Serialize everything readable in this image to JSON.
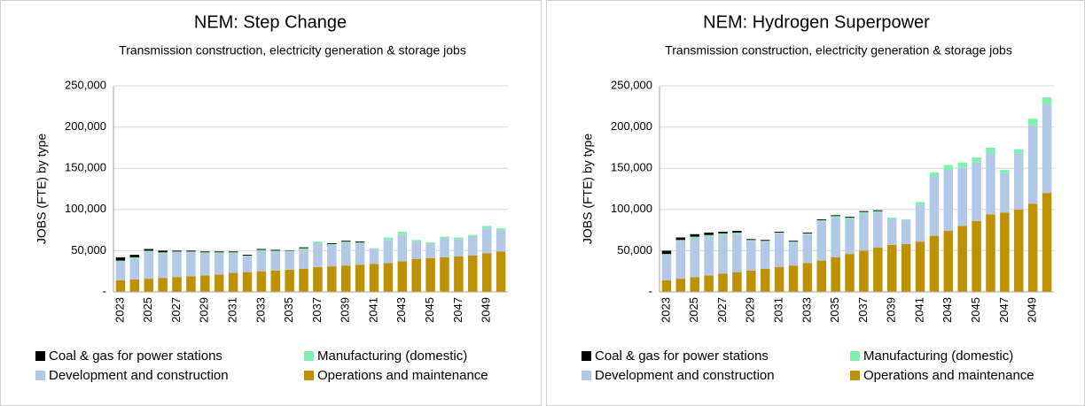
{
  "chart_data": [
    {
      "type": "stacked_bar",
      "title": "NEM: Step Change",
      "subtitle": "Transmission construction, electricity generation & storage jobs",
      "y_label": "JOBS (FTE) by type",
      "categories": [
        "2023",
        null,
        "2025",
        null,
        "2027",
        null,
        "2029",
        null,
        "2031",
        null,
        "2033",
        null,
        "2035",
        null,
        "2037",
        null,
        "2039",
        null,
        "2041",
        null,
        "2043",
        null,
        "2045",
        null,
        "2047",
        null,
        "2049",
        null
      ],
      "ylim": [
        0,
        250000
      ],
      "yticks": [
        {
          "value": 0,
          "label": "-"
        },
        {
          "value": 50000,
          "label": "50,000"
        },
        {
          "value": 100000,
          "label": "100,000"
        },
        {
          "value": 150000,
          "label": "150,000"
        },
        {
          "value": 200000,
          "label": "200,000"
        },
        {
          "value": 250000,
          "label": "250,000"
        }
      ],
      "grid": true,
      "series": [
        {
          "name": "Coal & gas for power stations",
          "color": "#000000",
          "values": [
            4000,
            3000,
            2000,
            2000,
            1000,
            1000,
            1000,
            1000,
            1000,
            1000,
            1000,
            1000,
            500,
            1000,
            0,
            1000,
            1000,
            1000,
            0,
            0,
            0,
            0,
            0,
            0,
            0,
            0,
            0,
            0
          ]
        },
        {
          "name": "Manufacturing (domestic)",
          "color": "#7ff0b0",
          "values": [
            2000,
            2000,
            1000,
            1000,
            1000,
            1000,
            1000,
            1000,
            1000,
            1000,
            1000,
            1000,
            1000,
            2000,
            2000,
            1000,
            1000,
            1000,
            1000,
            3000,
            4000,
            2000,
            2000,
            2000,
            2000,
            2000,
            3000,
            2000
          ]
        },
        {
          "name": "Development and construction",
          "color": "#b4c7e7",
          "values": [
            22000,
            25000,
            33000,
            30000,
            30000,
            29000,
            27000,
            26000,
            24000,
            19000,
            25000,
            23000,
            22000,
            23000,
            29000,
            26000,
            28000,
            26000,
            18000,
            28000,
            32000,
            21000,
            17000,
            23000,
            21000,
            23000,
            30000,
            26000
          ]
        },
        {
          "name": "Operations and maintenance",
          "color": "#bf9000",
          "values": [
            14000,
            15000,
            16000,
            17000,
            18000,
            19000,
            20000,
            21000,
            23000,
            24000,
            25000,
            26000,
            27000,
            28000,
            30000,
            31000,
            32000,
            33000,
            34000,
            35000,
            37000,
            40000,
            41000,
            42000,
            43000,
            44000,
            47000,
            49000
          ]
        }
      ]
    },
    {
      "type": "stacked_bar",
      "title": "NEM: Hydrogen Superpower",
      "subtitle": "Transmission construction, electricity generation & storage jobs",
      "y_label": "JOBS (FTE) by type",
      "categories": [
        "2023",
        null,
        "2025",
        null,
        "2027",
        null,
        "2029",
        null,
        "2031",
        null,
        "2033",
        null,
        "2035",
        null,
        "2037",
        null,
        "2039",
        null,
        "2041",
        null,
        "2043",
        null,
        "2045",
        null,
        "2047",
        null,
        "2049",
        null
      ],
      "ylim": [
        0,
        250000
      ],
      "yticks": [
        {
          "value": 0,
          "label": "-"
        },
        {
          "value": 50000,
          "label": "50,000"
        },
        {
          "value": 100000,
          "label": "100,000"
        },
        {
          "value": 150000,
          "label": "150,000"
        },
        {
          "value": 200000,
          "label": "200,000"
        },
        {
          "value": 250000,
          "label": "250,000"
        }
      ],
      "grid": true,
      "series": [
        {
          "name": "Coal & gas for power stations",
          "color": "#000000",
          "values": [
            4000,
            3000,
            3000,
            3000,
            2000,
            2000,
            1000,
            1000,
            1000,
            1000,
            1000,
            1000,
            1000,
            1000,
            1000,
            1000,
            0,
            0,
            0,
            0,
            0,
            0,
            0,
            0,
            0,
            0,
            0,
            0
          ]
        },
        {
          "name": "Manufacturing (domestic)",
          "color": "#7ff0b0",
          "values": [
            2000,
            2000,
            2000,
            2000,
            2000,
            2000,
            1000,
            1000,
            1000,
            1000,
            1000,
            2000,
            2000,
            2000,
            2000,
            2000,
            2000,
            1000,
            3000,
            5000,
            6000,
            6000,
            6000,
            7000,
            4000,
            5000,
            8000,
            9000
          ]
        },
        {
          "name": "Development and construction",
          "color": "#b4c7e7",
          "values": [
            30000,
            45000,
            47000,
            47000,
            47000,
            46000,
            36000,
            33000,
            41000,
            28000,
            35000,
            47000,
            48000,
            42000,
            45000,
            42000,
            31000,
            29000,
            45000,
            72000,
            74000,
            71000,
            71000,
            74000,
            48000,
            68000,
            95000,
            107000
          ]
        },
        {
          "name": "Operations and maintenance",
          "color": "#bf9000",
          "values": [
            14000,
            16000,
            18000,
            20000,
            22000,
            24000,
            26000,
            28000,
            30000,
            32000,
            35000,
            38000,
            42000,
            46000,
            50000,
            54000,
            57000,
            58000,
            61000,
            68000,
            74000,
            80000,
            86000,
            94000,
            96000,
            100000,
            107000,
            120000
          ]
        }
      ]
    }
  ]
}
